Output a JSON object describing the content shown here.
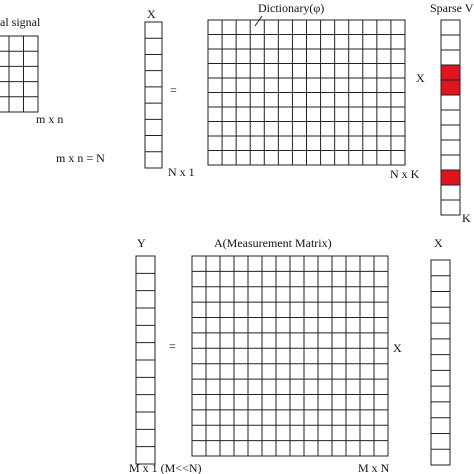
{
  "original_signal": {
    "label": "al signal",
    "size": "m x n",
    "equation": "m x n = N"
  },
  "signal_vector": {
    "label": "X",
    "equals": "=",
    "size": "N x 1"
  },
  "dictionary": {
    "label": "Dictionary(φ)",
    "size": "N x K"
  },
  "sparse_vector": {
    "times": "X",
    "label": "Sparse V",
    "size": "K"
  },
  "measurement_vector": {
    "label": "Y",
    "equals": "=",
    "size": "M x 1 (M<<N)"
  },
  "measurement_matrix": {
    "label": "A(Measurement Matrix)",
    "times": "X",
    "size": "M x N"
  },
  "input_vector": {
    "label": "X"
  }
}
